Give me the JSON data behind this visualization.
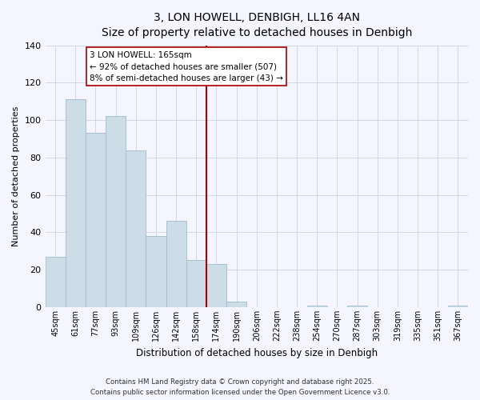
{
  "title": "3, LON HOWELL, DENBIGH, LL16 4AN",
  "subtitle": "Size of property relative to detached houses in Denbigh",
  "xlabel": "Distribution of detached houses by size in Denbigh",
  "ylabel": "Number of detached properties",
  "bar_color": "#ccdde8",
  "bar_edge_color": "#a8c0d4",
  "background_color": "#f5f5ff",
  "grid_color": "#d0d8e8",
  "bin_labels": [
    "45sqm",
    "61sqm",
    "77sqm",
    "93sqm",
    "109sqm",
    "126sqm",
    "142sqm",
    "158sqm",
    "174sqm",
    "190sqm",
    "206sqm",
    "222sqm",
    "238sqm",
    "254sqm",
    "270sqm",
    "287sqm",
    "303sqm",
    "319sqm",
    "335sqm",
    "351sqm",
    "367sqm"
  ],
  "bar_heights": [
    27,
    111,
    93,
    102,
    84,
    38,
    46,
    25,
    23,
    3,
    0,
    0,
    0,
    1,
    0,
    1,
    0,
    0,
    0,
    0,
    1
  ],
  "vline_position": 7.5,
  "vline_color": "#aa0000",
  "annotation_line1": "3 LON HOWELL: 165sqm",
  "annotation_line2": "← 92% of detached houses are smaller (507)",
  "annotation_line3": "8% of semi-detached houses are larger (43) →",
  "annotation_box_color": "#ffffff",
  "annotation_box_edge": "#aa0000",
  "ylim": [
    0,
    140
  ],
  "yticks": [
    0,
    20,
    40,
    60,
    80,
    100,
    120,
    140
  ],
  "footnote1": "Contains HM Land Registry data © Crown copyright and database right 2025.",
  "footnote2": "Contains public sector information licensed under the Open Government Licence v3.0."
}
